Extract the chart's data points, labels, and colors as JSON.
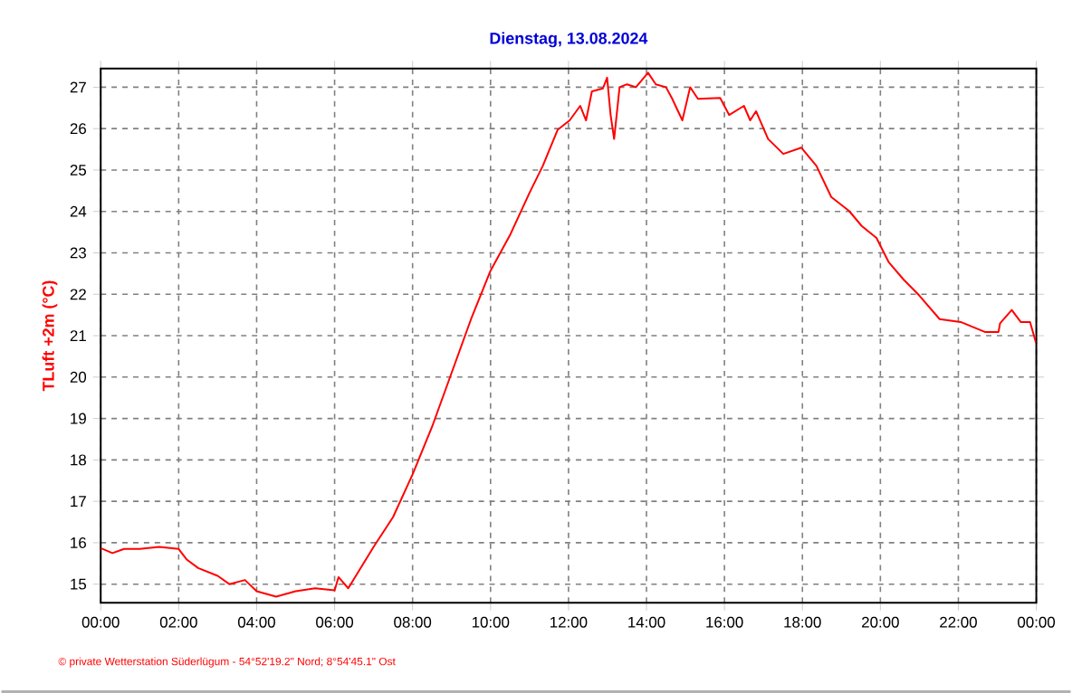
{
  "chart_data": {
    "type": "line",
    "title": "Dienstag, 13.08.2024",
    "ylabel": "TLuft +2m (°C)",
    "annotations": [
      "© private Wetterstation Süderlügum - 54°52'19.2\" Nord; 8°54'45.1\" Ost"
    ],
    "xlim": [
      0,
      24
    ],
    "xticks": [
      {
        "value": 0,
        "label": "00:00"
      },
      {
        "value": 2,
        "label": "02:00"
      },
      {
        "value": 4,
        "label": "04:00"
      },
      {
        "value": 6,
        "label": "06:00"
      },
      {
        "value": 8,
        "label": "08:00"
      },
      {
        "value": 10,
        "label": "10:00"
      },
      {
        "value": 12,
        "label": "12:00"
      },
      {
        "value": 14,
        "label": "14:00"
      },
      {
        "value": 16,
        "label": "16:00"
      },
      {
        "value": 18,
        "label": "18:00"
      },
      {
        "value": 20,
        "label": "20:00"
      },
      {
        "value": 22,
        "label": "22:00"
      },
      {
        "value": 24,
        "label": "00:00"
      }
    ],
    "ylim": [
      14.55,
      27.45
    ],
    "yticks": [
      15,
      16,
      17,
      18,
      19,
      20,
      21,
      22,
      23,
      24,
      25,
      26,
      27
    ],
    "grid": true,
    "marker": "none",
    "line_style": "solid",
    "series": [
      {
        "color": "#ff0000",
        "x": [
          0,
          0.3,
          0.6,
          1,
          1.5,
          2,
          2.2,
          2.5,
          3,
          3.3,
          3.7,
          4,
          4.5,
          5,
          5.5,
          6,
          6.1,
          6.35,
          7,
          7.5,
          8,
          8.5,
          9,
          9.5,
          10,
          10.5,
          11,
          11.34,
          11.72,
          12.03,
          12.3,
          12.45,
          12.6,
          12.88,
          12.99,
          13.08,
          13.17,
          13.31,
          13.5,
          13.73,
          14.04,
          14.24,
          14.5,
          14.65,
          14.92,
          15.12,
          15.32,
          15.89,
          16.12,
          16.5,
          16.66,
          16.81,
          17.12,
          17.51,
          17.97,
          18.36,
          18.74,
          19.2,
          19.52,
          19.9,
          20.21,
          20.6,
          20.98,
          21.52,
          22.06,
          22.68,
          23.03,
          23.07,
          23.37,
          23.6,
          23.84,
          23.99
        ],
        "values": [
          15.87,
          15.75,
          15.85,
          15.85,
          15.9,
          15.85,
          15.6,
          15.39,
          15.2,
          15.0,
          15.1,
          14.83,
          14.7,
          14.83,
          14.9,
          14.85,
          15.17,
          14.9,
          15.9,
          16.62,
          17.65,
          18.8,
          20.1,
          21.4,
          22.57,
          23.43,
          24.45,
          25.1,
          25.97,
          26.2,
          26.55,
          26.2,
          26.9,
          26.97,
          27.23,
          26.33,
          25.75,
          27.0,
          27.07,
          27.0,
          27.35,
          27.07,
          27.0,
          26.74,
          26.2,
          27.0,
          26.72,
          26.74,
          26.33,
          26.55,
          26.2,
          26.42,
          25.75,
          25.39,
          25.54,
          25.1,
          24.35,
          24.01,
          23.65,
          23.36,
          22.78,
          22.35,
          21.99,
          21.4,
          21.33,
          21.09,
          21.09,
          21.3,
          21.62,
          21.33,
          21.33,
          20.83
        ]
      }
    ]
  }
}
